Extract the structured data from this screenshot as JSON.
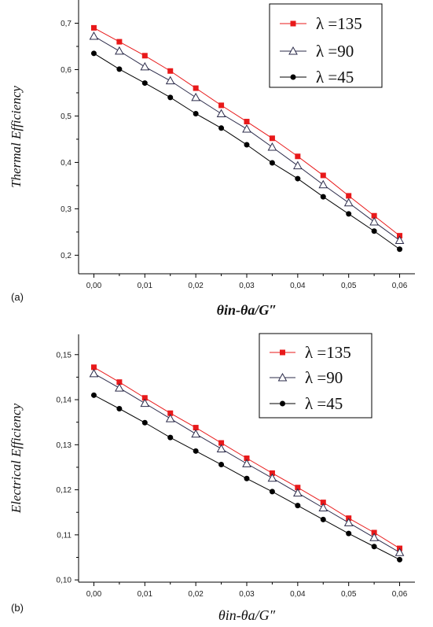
{
  "chart_data": [
    {
      "type": "line",
      "panel_label": "(a)",
      "ylabel": "Thermal Efficiency",
      "xlabel": "θin-θa/G″",
      "xlim": [
        -0.003,
        0.063
      ],
      "ylim": [
        0.16,
        0.75
      ],
      "xticks": [
        0.0,
        0.01,
        0.02,
        0.03,
        0.04,
        0.05,
        0.06
      ],
      "xtick_labels": [
        "0,00",
        "0,01",
        "0,02",
        "0,03",
        "0,04",
        "0,05",
        "0,06"
      ],
      "yticks": [
        0.2,
        0.3,
        0.4,
        0.5,
        0.6,
        0.7
      ],
      "ytick_labels": [
        "0,2",
        "0,3",
        "0,4",
        "0,5",
        "0,6",
        "0,7"
      ],
      "x": [
        0.0,
        0.005,
        0.01,
        0.015,
        0.02,
        0.025,
        0.03,
        0.035,
        0.04,
        0.045,
        0.05,
        0.055,
        0.06
      ],
      "legend_position": "top-right",
      "series": [
        {
          "name": "λ =135",
          "color": "#e8191a",
          "marker": "square",
          "values": [
            0.69,
            0.66,
            0.63,
            0.597,
            0.56,
            0.523,
            0.488,
            0.452,
            0.413,
            0.372,
            0.328,
            0.285,
            0.242
          ]
        },
        {
          "name": "λ =90",
          "color": "#2b2b4a",
          "marker": "triangle-open",
          "values": [
            0.672,
            0.64,
            0.606,
            0.576,
            0.54,
            0.505,
            0.472,
            0.433,
            0.393,
            0.352,
            0.313,
            0.272,
            0.232
          ]
        },
        {
          "name": "λ =45",
          "color": "#000000",
          "marker": "circle",
          "values": [
            0.635,
            0.601,
            0.571,
            0.54,
            0.505,
            0.474,
            0.438,
            0.399,
            0.365,
            0.326,
            0.289,
            0.252,
            0.213
          ]
        }
      ]
    },
    {
      "type": "line",
      "panel_label": "(b)",
      "ylabel": "Electrical Efficiency",
      "xlabel": "θin-θa/G″",
      "xlim": [
        -0.003,
        0.063
      ],
      "ylim": [
        0.0995,
        0.1545
      ],
      "xticks": [
        0.0,
        0.01,
        0.02,
        0.03,
        0.04,
        0.05,
        0.06
      ],
      "xtick_labels": [
        "0,00",
        "0,01",
        "0,02",
        "0,03",
        "0,04",
        "0,05",
        "0,06"
      ],
      "yticks": [
        0.1,
        0.11,
        0.12,
        0.13,
        0.14,
        0.15
      ],
      "ytick_labels": [
        "0,10",
        "0,11",
        "0,12",
        "0,13",
        "0,14",
        "0,15"
      ],
      "x": [
        0.0,
        0.005,
        0.01,
        0.015,
        0.02,
        0.025,
        0.03,
        0.035,
        0.04,
        0.045,
        0.05,
        0.055,
        0.06
      ],
      "legend_position": "top-right",
      "series": [
        {
          "name": "λ =135",
          "color": "#e8191a",
          "marker": "square",
          "values": [
            0.1472,
            0.1439,
            0.1404,
            0.137,
            0.1338,
            0.1304,
            0.127,
            0.1237,
            0.1205,
            0.1172,
            0.1137,
            0.1105,
            0.107
          ]
        },
        {
          "name": "λ =90",
          "color": "#2b2b4a",
          "marker": "triangle-open",
          "values": [
            0.1458,
            0.1426,
            0.1392,
            0.1358,
            0.1324,
            0.1291,
            0.1258,
            0.1226,
            0.1193,
            0.116,
            0.1127,
            0.1094,
            0.1061
          ]
        },
        {
          "name": "λ =45",
          "color": "#000000",
          "marker": "circle",
          "values": [
            0.141,
            0.138,
            0.1349,
            0.1316,
            0.1286,
            0.1256,
            0.1225,
            0.1196,
            0.1165,
            0.1134,
            0.1103,
            0.1074,
            0.1045
          ]
        }
      ]
    }
  ]
}
